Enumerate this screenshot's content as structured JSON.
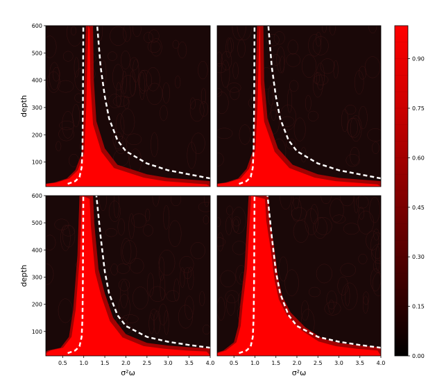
{
  "chart_data": {
    "type": "heatmap",
    "panels": [
      {
        "id": "top-left",
        "boundary_left": [
          [
            0.62,
            20
          ],
          [
            0.8,
            30
          ],
          [
            0.9,
            45
          ],
          [
            0.95,
            80
          ],
          [
            0.97,
            150
          ],
          [
            0.98,
            300
          ],
          [
            0.99,
            600
          ]
        ],
        "boundary_right": [
          [
            4.0,
            40
          ],
          [
            3.5,
            55
          ],
          [
            3.0,
            70
          ],
          [
            2.5,
            95
          ],
          [
            2.0,
            140
          ],
          [
            1.8,
            180
          ],
          [
            1.6,
            260
          ],
          [
            1.5,
            340
          ],
          [
            1.4,
            450
          ],
          [
            1.32,
            600
          ]
        ],
        "hot_left": [
          [
            0.05,
            20
          ],
          [
            0.3,
            25
          ],
          [
            0.6,
            40
          ],
          [
            0.8,
            70
          ],
          [
            0.95,
            130
          ],
          [
            1.0,
            300
          ],
          [
            1.05,
            600
          ]
        ],
        "hot_right": [
          [
            1.22,
            600
          ],
          [
            1.24,
            400
          ],
          [
            1.3,
            250
          ],
          [
            1.5,
            150
          ],
          [
            1.8,
            90
          ],
          [
            2.5,
            55
          ],
          [
            3.0,
            42
          ],
          [
            4.0,
            30
          ]
        ]
      },
      {
        "id": "top-right",
        "boundary_left": [
          [
            0.62,
            20
          ],
          [
            0.8,
            30
          ],
          [
            0.9,
            45
          ],
          [
            0.95,
            80
          ],
          [
            0.97,
            150
          ],
          [
            0.98,
            300
          ],
          [
            0.99,
            600
          ]
        ],
        "boundary_right": [
          [
            4.0,
            40
          ],
          [
            3.5,
            55
          ],
          [
            3.0,
            70
          ],
          [
            2.5,
            95
          ],
          [
            2.0,
            140
          ],
          [
            1.8,
            180
          ],
          [
            1.6,
            260
          ],
          [
            1.5,
            340
          ],
          [
            1.4,
            450
          ],
          [
            1.32,
            600
          ]
        ],
        "hot_left": [
          [
            0.05,
            20
          ],
          [
            0.3,
            25
          ],
          [
            0.6,
            40
          ],
          [
            0.8,
            75
          ],
          [
            0.95,
            140
          ],
          [
            1.0,
            300
          ],
          [
            1.05,
            600
          ]
        ],
        "hot_right": [
          [
            1.2,
            600
          ],
          [
            1.22,
            400
          ],
          [
            1.3,
            260
          ],
          [
            1.55,
            150
          ],
          [
            1.9,
            90
          ],
          [
            2.5,
            55
          ],
          [
            3.0,
            42
          ],
          [
            4.0,
            30
          ]
        ]
      },
      {
        "id": "bottom-left",
        "boundary_left": [
          [
            0.62,
            20
          ],
          [
            0.8,
            30
          ],
          [
            0.9,
            45
          ],
          [
            0.95,
            80
          ],
          [
            0.97,
            150
          ],
          [
            0.98,
            300
          ],
          [
            0.99,
            600
          ]
        ],
        "boundary_right": [
          [
            4.0,
            40
          ],
          [
            3.5,
            50
          ],
          [
            3.0,
            62
          ],
          [
            2.5,
            80
          ],
          [
            2.0,
            120
          ],
          [
            1.8,
            160
          ],
          [
            1.6,
            240
          ],
          [
            1.5,
            320
          ],
          [
            1.4,
            450
          ],
          [
            1.3,
            600
          ]
        ],
        "hot_left": [
          [
            0.05,
            20
          ],
          [
            0.15,
            30
          ],
          [
            0.45,
            40
          ],
          [
            0.65,
            80
          ],
          [
            0.75,
            180
          ],
          [
            0.85,
            380
          ],
          [
            0.9,
            600
          ]
        ],
        "hot_right": [
          [
            1.22,
            600
          ],
          [
            1.25,
            500
          ],
          [
            1.35,
            330
          ],
          [
            1.5,
            240
          ],
          [
            1.7,
            150
          ],
          [
            2.0,
            90
          ],
          [
            2.5,
            58
          ],
          [
            3.0,
            48
          ],
          [
            3.5,
            42
          ],
          [
            4.0,
            38
          ]
        ]
      },
      {
        "id": "bottom-right",
        "boundary_left": [
          [
            0.62,
            20
          ],
          [
            0.8,
            30
          ],
          [
            0.9,
            45
          ],
          [
            0.95,
            80
          ],
          [
            0.97,
            150
          ],
          [
            0.98,
            300
          ],
          [
            0.99,
            600
          ]
        ],
        "boundary_right": [
          [
            4.0,
            40
          ],
          [
            3.5,
            50
          ],
          [
            3.0,
            62
          ],
          [
            2.5,
            80
          ],
          [
            2.0,
            120
          ],
          [
            1.8,
            160
          ],
          [
            1.6,
            240
          ],
          [
            1.5,
            320
          ],
          [
            1.4,
            450
          ],
          [
            1.3,
            600
          ]
        ],
        "hot_left": [
          [
            0.05,
            20
          ],
          [
            0.25,
            30
          ],
          [
            0.5,
            60
          ],
          [
            0.6,
            120
          ],
          [
            0.65,
            200
          ],
          [
            0.75,
            330
          ],
          [
            0.85,
            600
          ]
        ],
        "hot_right": [
          [
            1.32,
            600
          ],
          [
            1.35,
            520
          ],
          [
            1.45,
            420
          ],
          [
            1.55,
            300
          ],
          [
            1.65,
            230
          ],
          [
            1.85,
            170
          ],
          [
            2.2,
            115
          ],
          [
            2.6,
            75
          ],
          [
            3.0,
            58
          ],
          [
            3.5,
            48
          ],
          [
            4.0,
            42
          ]
        ]
      }
    ],
    "xlim": [
      0.1,
      4.0
    ],
    "ylim": [
      10,
      600
    ],
    "xticks": [
      "0.5",
      "1.0",
      "1.5",
      "2.0",
      "2.5",
      "3.0",
      "3.5",
      "4.0"
    ],
    "yticks": [
      "100",
      "200",
      "300",
      "400",
      "500",
      "600"
    ],
    "xlabel": "σ²ω",
    "ylabel": "depth",
    "colorbar": {
      "range": [
        0.0,
        1.0
      ],
      "ticks": [
        "0.00",
        "0.15",
        "0.30",
        "0.45",
        "0.60",
        "0.75",
        "0.90"
      ]
    }
  },
  "colors": {
    "high": "#ff0000",
    "low": "#1a0808",
    "boundary": "#ffffff"
  }
}
